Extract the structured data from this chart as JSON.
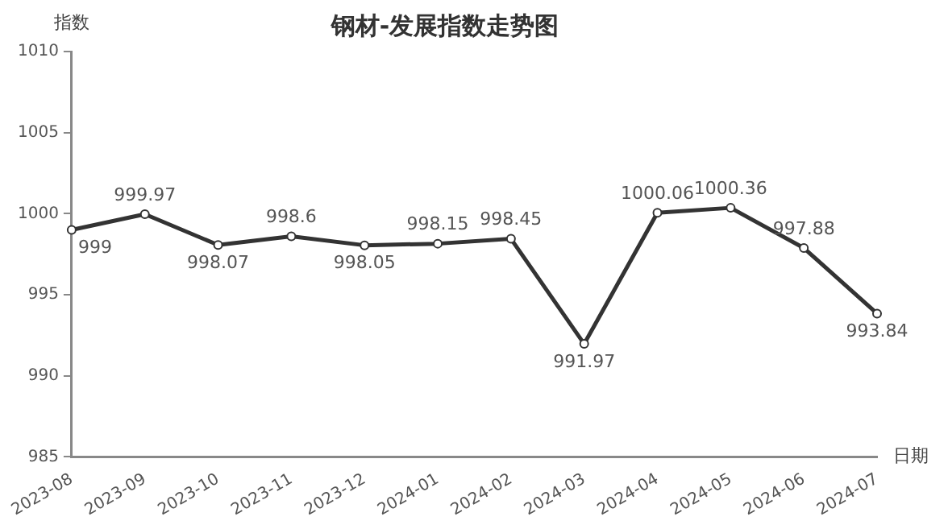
{
  "chart_data": {
    "type": "line",
    "title": "钢材-发展指数走势图",
    "xlabel": "日期",
    "ylabel": "指数",
    "categories": [
      "2023-08",
      "2023-09",
      "2023-10",
      "2023-11",
      "2023-12",
      "2024-01",
      "2024-02",
      "2024-03",
      "2024-04",
      "2024-05",
      "2024-06",
      "2024-07"
    ],
    "series": [
      {
        "color": "#333333",
        "values": [
          999,
          999.97,
          998.07,
          998.6,
          998.05,
          998.15,
          998.45,
          991.97,
          1000.06,
          1000.36,
          997.88,
          993.84
        ]
      }
    ],
    "ylim": [
      985,
      1010
    ],
    "yticks": [
      985,
      990,
      995,
      1000,
      1005,
      1010
    ],
    "grid": false,
    "legend": false,
    "marker": "circle",
    "line_style": "solid",
    "data_labels": true
  }
}
